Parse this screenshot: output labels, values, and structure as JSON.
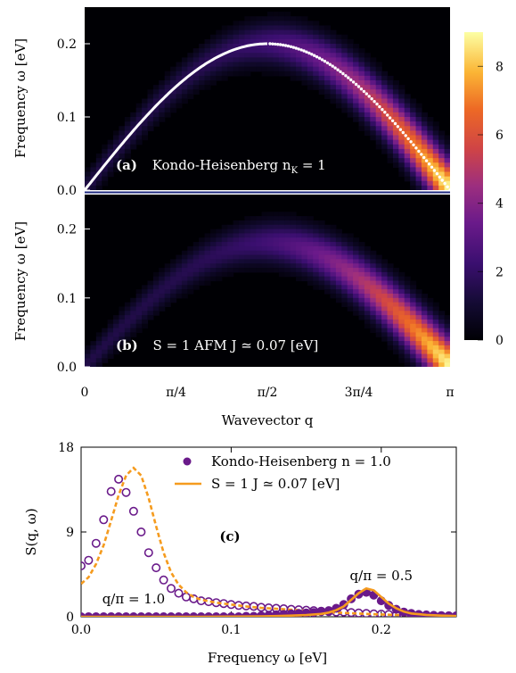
{
  "chart_data": [
    {
      "type": "heatmap",
      "panel": "(a)",
      "label_prefix": "(a)",
      "label_text": "Kondo-Heisenberg n",
      "label_sub": "K",
      "label_suffix": " = 1",
      "ylabel": "Frequency ω [eV]",
      "ylim": [
        0,
        0.25
      ],
      "yticks": [
        "0.0",
        "0.1",
        "0.2"
      ],
      "ytick_values": [
        0,
        0.1,
        0.2
      ],
      "xlim": [
        0,
        3.14159
      ],
      "overlay_dispersion": "ω = 0.2 sin(q)",
      "overlay_color": "#ffffff",
      "ridge_peak_omega": 0.2,
      "max_intensity_q": "π",
      "colors": {
        "low": "#000004",
        "mid": "#b5367a",
        "high": "#fcffa4"
      }
    },
    {
      "type": "heatmap",
      "panel": "(b)",
      "label_prefix": "(b)",
      "label_text": "S = 1 AFM J ≃ 0.07 [eV]",
      "ylabel": "Frequency ω [eV]",
      "ylim": [
        0,
        0.25
      ],
      "yticks": [
        "0.0",
        "0.1",
        "0.2"
      ],
      "ytick_values": [
        0,
        0.1,
        0.2
      ],
      "xlabel": "Wavevector q",
      "xticks": [
        "0",
        "π/4",
        "π/2",
        "3π/4",
        "π"
      ],
      "xtick_values": [
        0,
        0.7854,
        1.5708,
        2.3562,
        3.14159
      ],
      "ridge_peak_omega": 0.18
    },
    {
      "type": "colorbar",
      "ticks": [
        "0",
        "2",
        "4",
        "6",
        "8"
      ],
      "tick_values": [
        0,
        2,
        4,
        6,
        8
      ],
      "range": [
        0,
        9
      ]
    },
    {
      "type": "line",
      "panel": "(c)",
      "panel_label": "(c)",
      "ylabel": "S(q, ω)",
      "xlabel": "Frequency ω [eV]",
      "xlim": [
        0,
        0.25
      ],
      "ylim": [
        0,
        18
      ],
      "xticks": [
        "0.0",
        "0.1",
        "0.2"
      ],
      "xtick_values": [
        0,
        0.1,
        0.2
      ],
      "yticks": [
        "0",
        "9",
        "18"
      ],
      "ytick_values": [
        0,
        9,
        18
      ],
      "annotations": [
        {
          "text": "q/π = 0.5",
          "x": 0.2,
          "y": 3.9
        },
        {
          "text": "q/π = 1.0",
          "x": 0.035,
          "y": 1.4
        }
      ],
      "legend": [
        "Kondo-Heisenberg n = 1.0",
        "S = 1 J ≃ 0.07 [eV]"
      ],
      "legend_position": "top-right",
      "series": [
        {
          "name": "Kondo-Heisenberg n = 1.0",
          "group": "q/π = 1.0",
          "style": "open-circle",
          "color": "#6a1a8a",
          "x": [
            0.0,
            0.005,
            0.01,
            0.015,
            0.02,
            0.025,
            0.03,
            0.035,
            0.04,
            0.045,
            0.05,
            0.055,
            0.06,
            0.065,
            0.07,
            0.075,
            0.08,
            0.085,
            0.09,
            0.095,
            0.1,
            0.105,
            0.11,
            0.115,
            0.12,
            0.125,
            0.13,
            0.135,
            0.14,
            0.145,
            0.15,
            0.155,
            0.16,
            0.165,
            0.17,
            0.175,
            0.18,
            0.185,
            0.19,
            0.195,
            0.2,
            0.205,
            0.21,
            0.215,
            0.22,
            0.225,
            0.23,
            0.235,
            0.24,
            0.245,
            0.25
          ],
          "y": [
            5.4,
            6.0,
            7.8,
            10.3,
            13.3,
            14.6,
            13.2,
            11.2,
            9.0,
            6.8,
            5.2,
            3.9,
            3.0,
            2.5,
            2.1,
            1.9,
            1.7,
            1.6,
            1.5,
            1.4,
            1.3,
            1.2,
            1.15,
            1.1,
            1.0,
            0.95,
            0.9,
            0.85,
            0.8,
            0.75,
            0.7,
            0.65,
            0.6,
            0.55,
            0.5,
            0.5,
            0.45,
            0.4,
            0.35,
            0.3,
            0.28,
            0.25,
            0.2,
            0.2,
            0.18,
            0.15,
            0.12,
            0.1,
            0.1,
            0.08,
            0.05
          ]
        },
        {
          "name": "S = 1 J ≃ 0.07 [eV]",
          "group": "q/π = 1.0",
          "style": "dashed",
          "color": "#f59b1e",
          "x": [
            0.0,
            0.005,
            0.01,
            0.015,
            0.02,
            0.025,
            0.03,
            0.035,
            0.04,
            0.045,
            0.05,
            0.055,
            0.06,
            0.065,
            0.07,
            0.075,
            0.08,
            0.09,
            0.1,
            0.11,
            0.12,
            0.13,
            0.14,
            0.15,
            0.16,
            0.17,
            0.18,
            0.19,
            0.2,
            0.21,
            0.22,
            0.23,
            0.24,
            0.25
          ],
          "y": [
            3.5,
            4.2,
            5.6,
            7.6,
            10.2,
            12.9,
            15.0,
            15.8,
            15.0,
            12.6,
            9.6,
            6.8,
            4.7,
            3.4,
            2.6,
            2.1,
            1.8,
            1.5,
            1.3,
            1.1,
            0.95,
            0.85,
            0.75,
            0.65,
            0.55,
            0.45,
            0.38,
            0.3,
            0.25,
            0.2,
            0.15,
            0.12,
            0.1,
            0.08
          ]
        },
        {
          "name": "Kondo-Heisenberg n = 1.0",
          "group": "q/π = 0.5",
          "style": "filled-circle",
          "color": "#6a1a8a",
          "x": [
            0.0,
            0.005,
            0.01,
            0.015,
            0.02,
            0.025,
            0.03,
            0.035,
            0.04,
            0.045,
            0.05,
            0.055,
            0.06,
            0.065,
            0.07,
            0.075,
            0.08,
            0.085,
            0.09,
            0.095,
            0.1,
            0.105,
            0.11,
            0.115,
            0.12,
            0.125,
            0.13,
            0.135,
            0.14,
            0.145,
            0.15,
            0.155,
            0.16,
            0.165,
            0.17,
            0.175,
            0.18,
            0.185,
            0.19,
            0.195,
            0.2,
            0.205,
            0.21,
            0.215,
            0.22,
            0.225,
            0.23,
            0.235,
            0.24,
            0.245,
            0.25
          ],
          "y": [
            0.0,
            0.0,
            0.0,
            0.0,
            0.0,
            0.0,
            0.0,
            0.0,
            0.0,
            0.0,
            0.0,
            0.0,
            0.0,
            0.0,
            0.0,
            0.0,
            0.0,
            0.0,
            0.0,
            0.0,
            0.0,
            0.0,
            0.05,
            0.05,
            0.1,
            0.15,
            0.2,
            0.25,
            0.3,
            0.35,
            0.4,
            0.45,
            0.55,
            0.65,
            0.9,
            1.3,
            1.9,
            2.4,
            2.6,
            2.3,
            1.7,
            1.2,
            0.8,
            0.5,
            0.35,
            0.25,
            0.2,
            0.15,
            0.12,
            0.1,
            0.1
          ]
        },
        {
          "name": "S = 1 J ≃ 0.07 [eV]",
          "group": "q/π = 0.5",
          "style": "solid",
          "color": "#f59b1e",
          "x": [
            0.0,
            0.02,
            0.04,
            0.06,
            0.08,
            0.1,
            0.12,
            0.13,
            0.14,
            0.15,
            0.16,
            0.165,
            0.17,
            0.175,
            0.18,
            0.185,
            0.19,
            0.195,
            0.2,
            0.205,
            0.21,
            0.215,
            0.22,
            0.23,
            0.24,
            0.25
          ],
          "y": [
            0.0,
            0.0,
            0.0,
            0.0,
            0.0,
            0.02,
            0.05,
            0.08,
            0.12,
            0.18,
            0.3,
            0.45,
            0.7,
            1.1,
            1.8,
            2.5,
            3.0,
            2.8,
            2.1,
            1.4,
            0.9,
            0.55,
            0.35,
            0.2,
            0.12,
            0.08
          ]
        }
      ]
    }
  ]
}
